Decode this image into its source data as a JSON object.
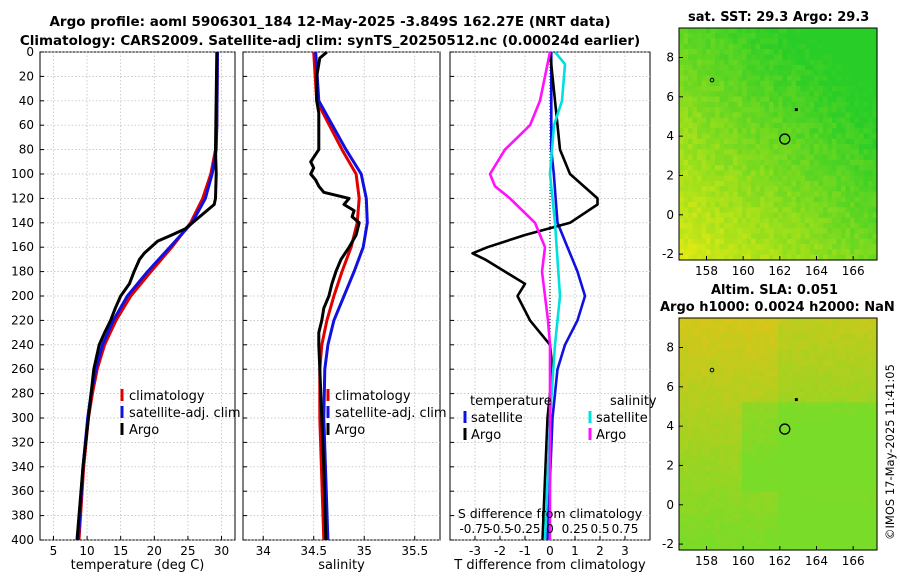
{
  "titles": {
    "line1": "Argo profile: aoml 5906301_184 12-May-2025 -3.849S 162.27E (NRT data)",
    "line2": "Climatology: CARS2009. Satellite-adj clim: synTS_20250512.nc (0.00024d earlier)"
  },
  "colors": {
    "climatology": "#e00000",
    "satellite": "#1010e0",
    "argo": "#000000",
    "sat_salinity": "#00e0e0",
    "argo_salinity": "#ff10ff"
  },
  "chart_data": [
    {
      "type": "line",
      "title": "",
      "xlabel": "temperature (deg C)",
      "ylabel": "",
      "xlim": [
        3,
        32
      ],
      "ylim": [
        400,
        0
      ],
      "xticks": [
        "5",
        "10",
        "15",
        "20",
        "25",
        "30"
      ],
      "xtick_values": [
        5,
        10,
        15,
        20,
        25,
        30
      ],
      "yticks": [
        "0",
        "20",
        "40",
        "60",
        "80",
        "100",
        "120",
        "140",
        "160",
        "180",
        "200",
        "220",
        "240",
        "260",
        "280",
        "300",
        "320",
        "340",
        "360",
        "380",
        "400"
      ],
      "legend": [
        "climatology",
        "satellite-adj. clim",
        "Argo"
      ],
      "series": [
        {
          "name": "climatology",
          "depth": [
            0,
            60,
            80,
            100,
            120,
            140,
            160,
            180,
            200,
            220,
            240,
            260,
            280,
            300,
            340,
            400
          ],
          "values": [
            29.4,
            29.3,
            29.1,
            28.4,
            27.2,
            25.4,
            22.6,
            19.5,
            16.5,
            14.3,
            12.6,
            11.5,
            10.8,
            10.2,
            9.5,
            8.8
          ]
        },
        {
          "name": "satellite-adj. clim",
          "depth": [
            0,
            60,
            80,
            100,
            120,
            140,
            160,
            180,
            200,
            220,
            240,
            260,
            280,
            300,
            340,
            400
          ],
          "values": [
            29.4,
            29.3,
            29.2,
            28.6,
            27.6,
            25.6,
            22.3,
            19.0,
            16.0,
            13.9,
            12.3,
            11.3,
            10.6,
            10.1,
            9.4,
            8.7
          ]
        },
        {
          "name": "Argo",
          "depth": [
            0,
            80,
            100,
            120,
            125,
            145,
            150,
            155,
            165,
            170,
            180,
            190,
            200,
            210,
            220,
            230,
            240,
            250,
            260,
            280,
            300,
            340,
            400
          ],
          "values": [
            29.3,
            29.1,
            29.2,
            29.1,
            28.9,
            24.6,
            22.6,
            20.5,
            18.5,
            17.8,
            17.0,
            16.3,
            15.0,
            14.2,
            13.5,
            12.6,
            11.8,
            11.4,
            11.0,
            10.6,
            10.2,
            9.4,
            8.5
          ]
        }
      ]
    },
    {
      "type": "line",
      "title": "",
      "xlabel": "salinity",
      "ylabel": "",
      "xlim": [
        33.8,
        35.75
      ],
      "ylim": [
        400,
        0
      ],
      "xticks": [
        "34",
        "34.5",
        "35",
        "35.5"
      ],
      "xtick_values": [
        34,
        34.5,
        35,
        35.5
      ],
      "legend": [
        "climatology",
        "satellite-adj. clim",
        "Argo"
      ],
      "series": [
        {
          "name": "climatology",
          "depth": [
            0,
            40,
            80,
            100,
            120,
            140,
            160,
            180,
            200,
            220,
            240,
            260,
            300,
            400
          ],
          "values": [
            34.5,
            34.53,
            34.78,
            34.92,
            34.95,
            34.93,
            34.87,
            34.78,
            34.7,
            34.63,
            34.58,
            34.56,
            34.56,
            34.6
          ]
        },
        {
          "name": "satellite-adj. clim",
          "depth": [
            0,
            40,
            80,
            100,
            120,
            140,
            160,
            180,
            200,
            220,
            240,
            260,
            300,
            400
          ],
          "values": [
            34.52,
            34.55,
            34.82,
            34.97,
            35.02,
            35.03,
            34.99,
            34.9,
            34.8,
            34.7,
            34.64,
            34.61,
            34.6,
            34.64
          ]
        },
        {
          "name": "Argo",
          "depth": [
            0,
            5,
            20,
            40,
            50,
            80,
            90,
            95,
            100,
            105,
            110,
            115,
            120,
            125,
            130,
            135,
            140,
            150,
            160,
            170,
            180,
            190,
            200,
            210,
            220,
            230,
            240,
            260,
            280,
            300,
            340,
            400
          ],
          "values": [
            34.63,
            34.56,
            34.53,
            34.53,
            34.55,
            34.55,
            34.47,
            34.5,
            34.47,
            34.52,
            34.55,
            34.6,
            34.85,
            34.8,
            34.9,
            34.88,
            34.95,
            34.92,
            34.85,
            34.77,
            34.72,
            34.68,
            34.65,
            34.6,
            34.58,
            34.55,
            34.55,
            34.56,
            34.57,
            34.58,
            34.6,
            34.62
          ]
        }
      ]
    },
    {
      "type": "line",
      "title": "",
      "xlabel": "T difference from climatology",
      "ylabel": "",
      "xlim": [
        -4,
        4
      ],
      "ylim": [
        400,
        0
      ],
      "xticks": [
        "-3",
        "-2",
        "-1",
        "0",
        "1",
        "2",
        "3"
      ],
      "xtick_values": [
        -3,
        -2,
        -1,
        0,
        1,
        2,
        3
      ],
      "legend": [
        "temperature",
        "satellite",
        "Argo",
        "salinity",
        "satellite",
        "Argo"
      ],
      "secondary_axis_label": "S difference from climatology",
      "secondary_ticks": [
        "-0.75",
        "-0.5",
        "-0.25",
        "0",
        "0.25",
        "0.5",
        "0.75"
      ],
      "series": [
        {
          "name": "temperature satellite",
          "depth": [
            0,
            80,
            100,
            140,
            160,
            180,
            200,
            220,
            240,
            260,
            300,
            400
          ],
          "values": [
            0.05,
            0.05,
            0.15,
            0.3,
            0.7,
            1.1,
            1.4,
            1.1,
            0.6,
            0.3,
            0.1,
            -0.1
          ]
        },
        {
          "name": "temperature Argo",
          "depth": [
            0,
            80,
            100,
            120,
            125,
            140,
            150,
            160,
            165,
            170,
            180,
            190,
            200,
            220,
            240,
            260,
            300,
            400
          ],
          "values": [
            0.0,
            0.4,
            0.8,
            1.9,
            1.9,
            0.8,
            -1.0,
            -2.5,
            -3.1,
            -2.6,
            -1.8,
            -1.0,
            -1.3,
            -0.8,
            0.0,
            0.1,
            -0.1,
            -0.3
          ]
        },
        {
          "name": "salinity satellite",
          "depth": [
            0,
            10,
            40,
            60,
            100,
            140,
            200,
            240,
            300,
            400
          ],
          "values": [
            0.05,
            0.15,
            0.12,
            0.04,
            0.0,
            0.05,
            0.1,
            0.05,
            0.0,
            -0.05
          ]
        },
        {
          "name": "salinity Argo",
          "depth": [
            0,
            40,
            60,
            80,
            100,
            110,
            120,
            140,
            160,
            180,
            200,
            220,
            240,
            300,
            400
          ],
          "values": [
            0.0,
            -0.1,
            -0.2,
            -0.45,
            -0.6,
            -0.55,
            -0.4,
            -0.15,
            -0.05,
            -0.08,
            -0.05,
            -0.02,
            0.0,
            0.0,
            0.0
          ]
        }
      ]
    }
  ],
  "maps": [
    {
      "title": "sat. SST: 29.3 Argo: 29.3",
      "xticks": [
        "158",
        "160",
        "162",
        "164",
        "166"
      ],
      "yticks": [
        "8",
        "6",
        "4",
        "2",
        "0",
        "-2"
      ]
    },
    {
      "title1": "Altim. SLA: 0.051",
      "title2": "Argo h1000: 0.0024 h2000: NaN",
      "xticks": [
        "158",
        "160",
        "162",
        "164",
        "166"
      ],
      "yticks": [
        "8",
        "6",
        "4",
        "2",
        "0",
        "-2"
      ]
    }
  ],
  "credit": "©IMOS 17-May-2025 11:41:05"
}
